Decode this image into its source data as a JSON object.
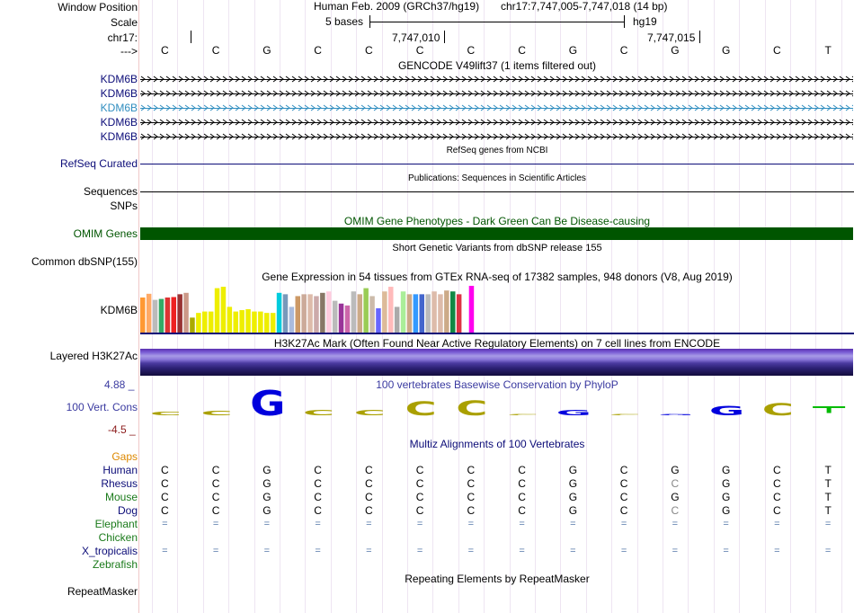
{
  "header": {
    "window_position_label": "Window Position",
    "scale_label": "Scale",
    "chrom_label": "chr17:",
    "strand_label": "--->",
    "assembly_title": "Human Feb. 2009 (GRCh37/hg19)",
    "position": "chr17:7,747,005-7,747,018 (14 bp)",
    "scale_text": "5 bases",
    "db_label": "hg19",
    "coord_ticks": [
      "7,747,010",
      "7,747,015"
    ]
  },
  "sequence": [
    "C",
    "C",
    "G",
    "C",
    "C",
    "C",
    "C",
    "C",
    "G",
    "C",
    "G",
    "G",
    "C",
    "T"
  ],
  "gencode": {
    "title": "GENCODE V49lift37 (1 items filtered out)",
    "genes": [
      "KDM6B",
      "KDM6B",
      "KDM6B",
      "KDM6B",
      "KDM6B"
    ]
  },
  "refseq": {
    "title": "RefSeq genes from NCBI",
    "label": "RefSeq Curated"
  },
  "publications": {
    "title": "Publications: Sequences in Scientific Articles",
    "label_sequences": "Sequences",
    "label_snps": "SNPs"
  },
  "omim": {
    "title": "OMIM Gene Phenotypes - Dark Green Can Be Disease-causing",
    "label": "OMIM Genes"
  },
  "dbsnp": {
    "title": "Short Genetic Variants from dbSNP release 155",
    "label": "Common dbSNP(155)"
  },
  "gtex": {
    "title": "Gene Expression in 54 tissues from GTEx RNA-seq of 17382 samples, 948 donors (V8, Aug 2019)",
    "label": "KDM6B",
    "bars": [
      {
        "v": 0.75,
        "c": "#ff9933"
      },
      {
        "v": 0.83,
        "c": "#ffaa66"
      },
      {
        "v": 0.7,
        "c": "#bbbbbb"
      },
      {
        "v": 0.72,
        "c": "#33aa66"
      },
      {
        "v": 0.75,
        "c": "#dd3333"
      },
      {
        "v": 0.76,
        "c": "#ee2222"
      },
      {
        "v": 0.82,
        "c": "#993333"
      },
      {
        "v": 0.85,
        "c": "#cc9988"
      },
      {
        "v": 0.32,
        "c": "#aaaa00"
      },
      {
        "v": 0.42,
        "c": "#eeee00"
      },
      {
        "v": 0.45,
        "c": "#eeee00"
      },
      {
        "v": 0.45,
        "c": "#eeee00"
      },
      {
        "v": 0.95,
        "c": "#eeee00"
      },
      {
        "v": 0.98,
        "c": "#eeee00"
      },
      {
        "v": 0.55,
        "c": "#eeee00"
      },
      {
        "v": 0.45,
        "c": "#eeee00"
      },
      {
        "v": 0.48,
        "c": "#eeee00"
      },
      {
        "v": 0.5,
        "c": "#eeee00"
      },
      {
        "v": 0.45,
        "c": "#eeee00"
      },
      {
        "v": 0.45,
        "c": "#eeee00"
      },
      {
        "v": 0.42,
        "c": "#eeee00"
      },
      {
        "v": 0.42,
        "c": "#eeee00"
      },
      {
        "v": 0.85,
        "c": "#00ccdd"
      },
      {
        "v": 0.82,
        "c": "#7799bb"
      },
      {
        "v": 0.55,
        "c": "#aabbdd"
      },
      {
        "v": 0.78,
        "c": "#cc9966"
      },
      {
        "v": 0.82,
        "c": "#ccaa99"
      },
      {
        "v": 0.82,
        "c": "#ddbbaa"
      },
      {
        "v": 0.78,
        "c": "#ccaaaa"
      },
      {
        "v": 0.85,
        "c": "#887766"
      },
      {
        "v": 0.88,
        "c": "#ffccdd"
      },
      {
        "v": 0.68,
        "c": "#bbbbbb"
      },
      {
        "v": 0.62,
        "c": "#993399"
      },
      {
        "v": 0.58,
        "c": "#cc66aa"
      },
      {
        "v": 0.88,
        "c": "#bbbbbb"
      },
      {
        "v": 0.82,
        "c": "#ccaa88"
      },
      {
        "v": 0.95,
        "c": "#99cc55"
      },
      {
        "v": 0.78,
        "c": "#ccbbaa"
      },
      {
        "v": 0.52,
        "c": "#6666ff"
      },
      {
        "v": 0.88,
        "c": "#ddbb99"
      },
      {
        "v": 0.98,
        "c": "#ffbbbb"
      },
      {
        "v": 0.55,
        "c": "#aaaaaa"
      },
      {
        "v": 0.88,
        "c": "#aaee99"
      },
      {
        "v": 0.82,
        "c": "#ccaa88"
      },
      {
        "v": 0.82,
        "c": "#3399ff"
      },
      {
        "v": 0.82,
        "c": "#4466cc"
      },
      {
        "v": 0.82,
        "c": "#bbbbbb"
      },
      {
        "v": 0.88,
        "c": "#ddbbaa"
      },
      {
        "v": 0.82,
        "c": "#ddbbaa"
      },
      {
        "v": 0.9,
        "c": "#ccaa88"
      },
      {
        "v": 0.88,
        "c": "#118844"
      },
      {
        "v": 0.82,
        "c": "#dd3344"
      },
      {
        "v": 0.82,
        "c": "#ffffff"
      },
      {
        "v": 1.0,
        "c": "#ff00ee"
      }
    ]
  },
  "h3k27ac": {
    "title": "H3K27Ac Mark (Often Found Near Active Regulatory Elements) on 7 cell lines from ENCODE",
    "label": "Layered H3K27Ac"
  },
  "phylop": {
    "title": "100 vertebrates Basewise Conservation by PhyloP",
    "label": "100 Vert. Cons",
    "max_label": "4.88 _",
    "min_label": "-4.5 _",
    "scores": [
      0.4,
      0.5,
      2.8,
      0.55,
      0.6,
      1.55,
      1.65,
      0.12,
      0.55,
      0.15,
      0.0,
      1.05,
      1.35,
      -0.65
    ]
  },
  "multiz": {
    "title": "Multiz Alignments of 100 Vertebrates",
    "gaps_label": "Gaps",
    "species": [
      {
        "name": "Human",
        "color": "#0c0c78",
        "bases": [
          "C",
          "C",
          "G",
          "C",
          "C",
          "C",
          "C",
          "C",
          "G",
          "C",
          "G",
          "G",
          "C",
          "T"
        ]
      },
      {
        "name": "Rhesus",
        "color": "#0c0c78",
        "bases": [
          "C",
          "C",
          "G",
          "C",
          "C",
          "C",
          "C",
          "C",
          "G",
          "C",
          "C",
          "G",
          "C",
          "T"
        ]
      },
      {
        "name": "Mouse",
        "color": "#1a7a1a",
        "bases": [
          "C",
          "C",
          "G",
          "C",
          "C",
          "C",
          "C",
          "C",
          "G",
          "C",
          "G",
          "G",
          "C",
          "T"
        ]
      },
      {
        "name": "Dog",
        "color": "#0c0c78",
        "bases": [
          "C",
          "C",
          "G",
          "C",
          "C",
          "C",
          "C",
          "C",
          "G",
          "C",
          "C",
          "G",
          "C",
          "T"
        ]
      },
      {
        "name": "Elephant",
        "color": "#1a7a1a",
        "bases": [
          "=",
          "=",
          "=",
          "=",
          "=",
          "=",
          "=",
          "=",
          "=",
          "=",
          "=",
          "=",
          "=",
          "="
        ]
      },
      {
        "name": "Chicken",
        "color": "#1a7a1a",
        "bases": []
      },
      {
        "name": "X_tropicalis",
        "color": "#0c0c78",
        "bases": [
          "=",
          "=",
          "=",
          "=",
          "=",
          "=",
          "=",
          "=",
          "=",
          "=",
          "=",
          "=",
          "=",
          "="
        ]
      },
      {
        "name": "Zebrafish",
        "color": "#1a7a1a",
        "bases": []
      }
    ]
  },
  "repeatmasker": {
    "title": "Repeating Elements by RepeatMasker",
    "label": "RepeatMasker"
  },
  "colors": {
    "navy": "#0c0c78",
    "omim_green": "#005500",
    "highlight_blue": "#2f8dbf",
    "gaps_orange": "#dd8800"
  }
}
